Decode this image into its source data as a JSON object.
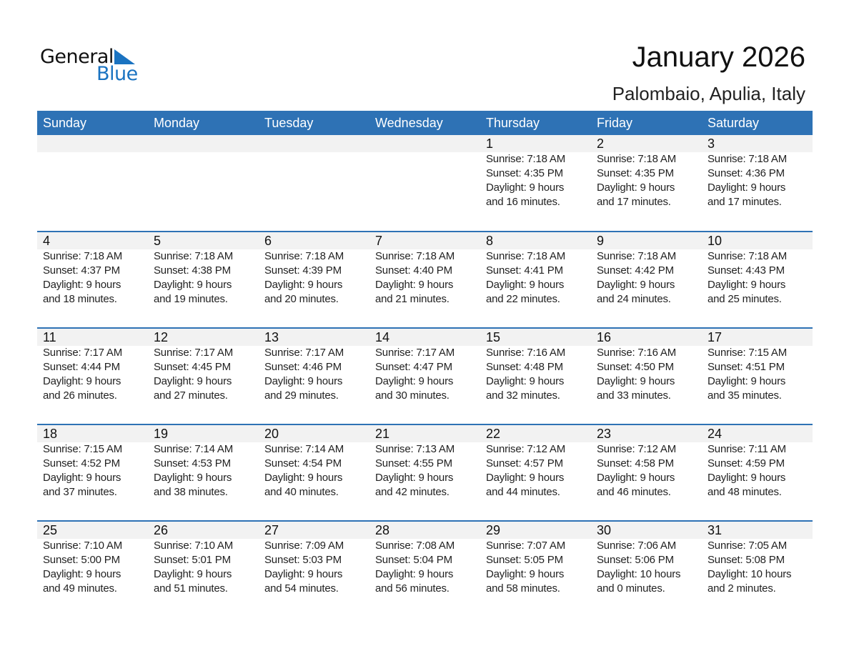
{
  "logo": {
    "text_general": "General",
    "text_blue": "Blue",
    "accent": "#1a73c1"
  },
  "header": {
    "title": "January 2026",
    "location": "Palombaio, Apulia, Italy"
  },
  "colors": {
    "header_bg": "#2e72b5",
    "day_band": "#f2f2f2"
  },
  "weekdays": [
    "Sunday",
    "Monday",
    "Tuesday",
    "Wednesday",
    "Thursday",
    "Friday",
    "Saturday"
  ],
  "weeks": [
    [
      null,
      null,
      null,
      null,
      {
        "day": "1",
        "sunrise": "Sunrise: 7:18 AM",
        "sunset": "Sunset: 4:35 PM",
        "daylight1": "Daylight: 9 hours",
        "daylight2": "and 16 minutes."
      },
      {
        "day": "2",
        "sunrise": "Sunrise: 7:18 AM",
        "sunset": "Sunset: 4:35 PM",
        "daylight1": "Daylight: 9 hours",
        "daylight2": "and 17 minutes."
      },
      {
        "day": "3",
        "sunrise": "Sunrise: 7:18 AM",
        "sunset": "Sunset: 4:36 PM",
        "daylight1": "Daylight: 9 hours",
        "daylight2": "and 17 minutes."
      }
    ],
    [
      {
        "day": "4",
        "sunrise": "Sunrise: 7:18 AM",
        "sunset": "Sunset: 4:37 PM",
        "daylight1": "Daylight: 9 hours",
        "daylight2": "and 18 minutes."
      },
      {
        "day": "5",
        "sunrise": "Sunrise: 7:18 AM",
        "sunset": "Sunset: 4:38 PM",
        "daylight1": "Daylight: 9 hours",
        "daylight2": "and 19 minutes."
      },
      {
        "day": "6",
        "sunrise": "Sunrise: 7:18 AM",
        "sunset": "Sunset: 4:39 PM",
        "daylight1": "Daylight: 9 hours",
        "daylight2": "and 20 minutes."
      },
      {
        "day": "7",
        "sunrise": "Sunrise: 7:18 AM",
        "sunset": "Sunset: 4:40 PM",
        "daylight1": "Daylight: 9 hours",
        "daylight2": "and 21 minutes."
      },
      {
        "day": "8",
        "sunrise": "Sunrise: 7:18 AM",
        "sunset": "Sunset: 4:41 PM",
        "daylight1": "Daylight: 9 hours",
        "daylight2": "and 22 minutes."
      },
      {
        "day": "9",
        "sunrise": "Sunrise: 7:18 AM",
        "sunset": "Sunset: 4:42 PM",
        "daylight1": "Daylight: 9 hours",
        "daylight2": "and 24 minutes."
      },
      {
        "day": "10",
        "sunrise": "Sunrise: 7:18 AM",
        "sunset": "Sunset: 4:43 PM",
        "daylight1": "Daylight: 9 hours",
        "daylight2": "and 25 minutes."
      }
    ],
    [
      {
        "day": "11",
        "sunrise": "Sunrise: 7:17 AM",
        "sunset": "Sunset: 4:44 PM",
        "daylight1": "Daylight: 9 hours",
        "daylight2": "and 26 minutes."
      },
      {
        "day": "12",
        "sunrise": "Sunrise: 7:17 AM",
        "sunset": "Sunset: 4:45 PM",
        "daylight1": "Daylight: 9 hours",
        "daylight2": "and 27 minutes."
      },
      {
        "day": "13",
        "sunrise": "Sunrise: 7:17 AM",
        "sunset": "Sunset: 4:46 PM",
        "daylight1": "Daylight: 9 hours",
        "daylight2": "and 29 minutes."
      },
      {
        "day": "14",
        "sunrise": "Sunrise: 7:17 AM",
        "sunset": "Sunset: 4:47 PM",
        "daylight1": "Daylight: 9 hours",
        "daylight2": "and 30 minutes."
      },
      {
        "day": "15",
        "sunrise": "Sunrise: 7:16 AM",
        "sunset": "Sunset: 4:48 PM",
        "daylight1": "Daylight: 9 hours",
        "daylight2": "and 32 minutes."
      },
      {
        "day": "16",
        "sunrise": "Sunrise: 7:16 AM",
        "sunset": "Sunset: 4:50 PM",
        "daylight1": "Daylight: 9 hours",
        "daylight2": "and 33 minutes."
      },
      {
        "day": "17",
        "sunrise": "Sunrise: 7:15 AM",
        "sunset": "Sunset: 4:51 PM",
        "daylight1": "Daylight: 9 hours",
        "daylight2": "and 35 minutes."
      }
    ],
    [
      {
        "day": "18",
        "sunrise": "Sunrise: 7:15 AM",
        "sunset": "Sunset: 4:52 PM",
        "daylight1": "Daylight: 9 hours",
        "daylight2": "and 37 minutes."
      },
      {
        "day": "19",
        "sunrise": "Sunrise: 7:14 AM",
        "sunset": "Sunset: 4:53 PM",
        "daylight1": "Daylight: 9 hours",
        "daylight2": "and 38 minutes."
      },
      {
        "day": "20",
        "sunrise": "Sunrise: 7:14 AM",
        "sunset": "Sunset: 4:54 PM",
        "daylight1": "Daylight: 9 hours",
        "daylight2": "and 40 minutes."
      },
      {
        "day": "21",
        "sunrise": "Sunrise: 7:13 AM",
        "sunset": "Sunset: 4:55 PM",
        "daylight1": "Daylight: 9 hours",
        "daylight2": "and 42 minutes."
      },
      {
        "day": "22",
        "sunrise": "Sunrise: 7:12 AM",
        "sunset": "Sunset: 4:57 PM",
        "daylight1": "Daylight: 9 hours",
        "daylight2": "and 44 minutes."
      },
      {
        "day": "23",
        "sunrise": "Sunrise: 7:12 AM",
        "sunset": "Sunset: 4:58 PM",
        "daylight1": "Daylight: 9 hours",
        "daylight2": "and 46 minutes."
      },
      {
        "day": "24",
        "sunrise": "Sunrise: 7:11 AM",
        "sunset": "Sunset: 4:59 PM",
        "daylight1": "Daylight: 9 hours",
        "daylight2": "and 48 minutes."
      }
    ],
    [
      {
        "day": "25",
        "sunrise": "Sunrise: 7:10 AM",
        "sunset": "Sunset: 5:00 PM",
        "daylight1": "Daylight: 9 hours",
        "daylight2": "and 49 minutes."
      },
      {
        "day": "26",
        "sunrise": "Sunrise: 7:10 AM",
        "sunset": "Sunset: 5:01 PM",
        "daylight1": "Daylight: 9 hours",
        "daylight2": "and 51 minutes."
      },
      {
        "day": "27",
        "sunrise": "Sunrise: 7:09 AM",
        "sunset": "Sunset: 5:03 PM",
        "daylight1": "Daylight: 9 hours",
        "daylight2": "and 54 minutes."
      },
      {
        "day": "28",
        "sunrise": "Sunrise: 7:08 AM",
        "sunset": "Sunset: 5:04 PM",
        "daylight1": "Daylight: 9 hours",
        "daylight2": "and 56 minutes."
      },
      {
        "day": "29",
        "sunrise": "Sunrise: 7:07 AM",
        "sunset": "Sunset: 5:05 PM",
        "daylight1": "Daylight: 9 hours",
        "daylight2": "and 58 minutes."
      },
      {
        "day": "30",
        "sunrise": "Sunrise: 7:06 AM",
        "sunset": "Sunset: 5:06 PM",
        "daylight1": "Daylight: 10 hours",
        "daylight2": "and 0 minutes."
      },
      {
        "day": "31",
        "sunrise": "Sunrise: 7:05 AM",
        "sunset": "Sunset: 5:08 PM",
        "daylight1": "Daylight: 10 hours",
        "daylight2": "and 2 minutes."
      }
    ]
  ]
}
